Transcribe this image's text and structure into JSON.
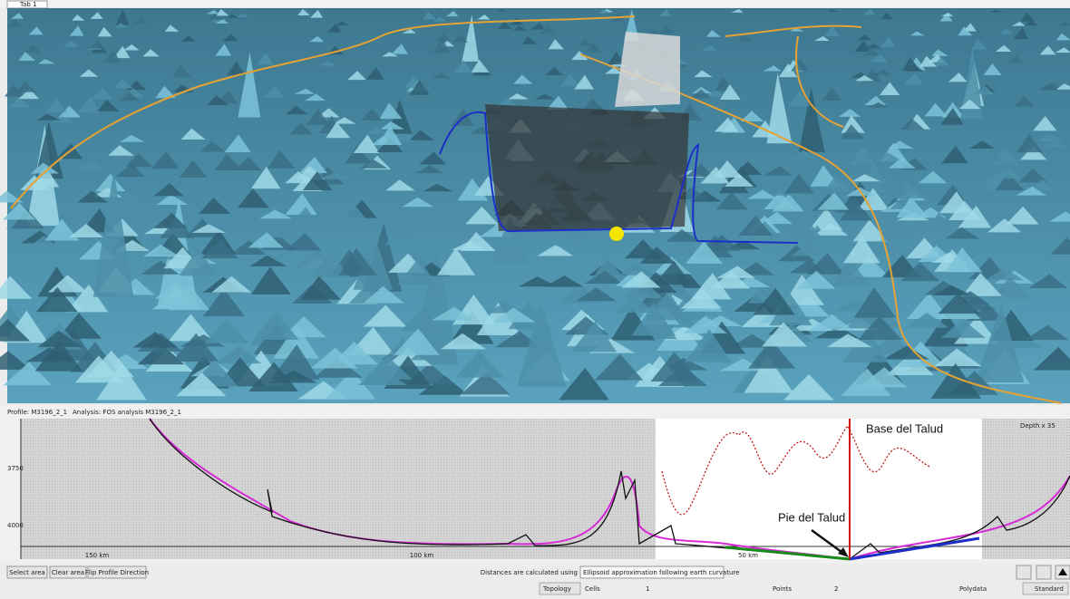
{
  "tabs": [
    "Tab 1"
  ],
  "profile": {
    "name": "Profile: M3196_2_1",
    "analysis": "Analysis: FOS analysis M3196_2_1",
    "exaggeration": "Depth x 35",
    "y_labels": [
      "3750",
      "4000"
    ],
    "x_labels": [
      "150 km",
      "100 km",
      "50 km"
    ],
    "annotations": [
      "Base del Talud",
      "Pie del Talud"
    ]
  },
  "toolbar": {
    "buttons": [
      "Select area",
      "Clear area",
      "Flip Profile Direction"
    ],
    "distance_label": "Distances are calculated using",
    "distance_method": "Ellipsoid approximation following earth curvature"
  },
  "status": {
    "topology": "Topology",
    "cells_label": "Cells",
    "cells": "1",
    "points_label": "Points",
    "points": "2",
    "polydata": "Polydata",
    "style": "Standard"
  }
}
